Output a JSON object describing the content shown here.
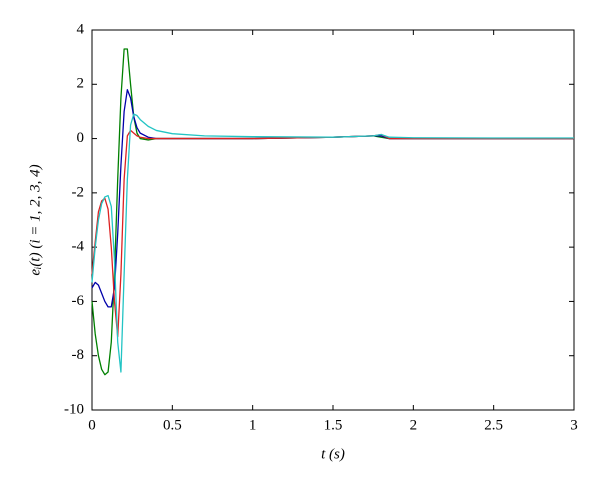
{
  "chart_data": {
    "type": "line",
    "xlabel": "t (s)",
    "ylabel": "eᵢ(t) (i = 1, 2, 3, 4)",
    "x": [
      0,
      0.02,
      0.04,
      0.06,
      0.08,
      0.1,
      0.12,
      0.14,
      0.16,
      0.18,
      0.2,
      0.22,
      0.24,
      0.26,
      0.28,
      0.3,
      0.35,
      0.4,
      0.5,
      0.7,
      1,
      1.5,
      1.75,
      1.8,
      1.85,
      2,
      2.5,
      3
    ],
    "series": [
      {
        "color": "#008000",
        "values": [
          -6,
          -7.2,
          -8.0,
          -8.5,
          -8.7,
          -8.6,
          -7.5,
          -5,
          -1.5,
          1.5,
          3.3,
          3.3,
          2,
          0.8,
          0.2,
          0,
          -0.05,
          0,
          0,
          0,
          0,
          0.05,
          0.1,
          0.05,
          0,
          0,
          0,
          0
        ]
      },
      {
        "color": "#0000aa",
        "values": [
          -5.5,
          -5.3,
          -5.4,
          -5.7,
          -6.0,
          -6.2,
          -6.2,
          -5.5,
          -3.5,
          -1,
          1,
          1.8,
          1.5,
          0.8,
          0.4,
          0.2,
          0.05,
          0,
          0,
          0,
          0,
          0.05,
          0.1,
          0.1,
          0,
          0,
          0,
          0
        ]
      },
      {
        "color": "#dd2222",
        "values": [
          -5,
          -3.8,
          -2.7,
          -2.3,
          -2.2,
          -2.6,
          -4,
          -6,
          -7.3,
          -5,
          -1.5,
          0.1,
          0.3,
          0.2,
          0.1,
          0.05,
          0,
          0,
          0,
          0,
          0,
          0.05,
          0.1,
          0.15,
          0,
          0,
          0,
          0
        ]
      },
      {
        "color": "#22c4c4",
        "values": [
          -5.3,
          -4,
          -3,
          -2.4,
          -2.15,
          -2.1,
          -2.5,
          -4.5,
          -7.5,
          -8.6,
          -5,
          -1.5,
          0.5,
          0.9,
          0.85,
          0.7,
          0.45,
          0.3,
          0.18,
          0.1,
          0.07,
          0.05,
          0.1,
          0.15,
          0.05,
          0.03,
          0.02,
          0.02
        ]
      }
    ],
    "xlim": [
      0,
      3
    ],
    "xticks": [
      0,
      0.5,
      1,
      1.5,
      2,
      2.5,
      3
    ],
    "ylim": [
      -10,
      4
    ],
    "yticks": [
      -10,
      -8,
      -6,
      -4,
      -2,
      0,
      2,
      4
    ],
    "grid": false
  }
}
